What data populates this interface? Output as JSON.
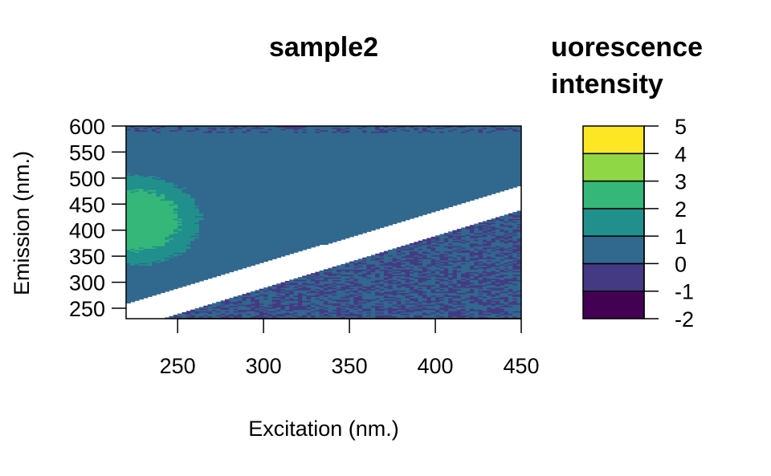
{
  "chart_data": {
    "type": "heatmap",
    "title": "sample2",
    "xlabel": "Excitation (nm.)",
    "ylabel": "Emission (nm.)",
    "xlim": [
      220,
      450
    ],
    "ylim": [
      230,
      600
    ],
    "x_ticks": [
      "250",
      "300",
      "350",
      "400",
      "450"
    ],
    "y_ticks": [
      "250",
      "300",
      "350",
      "400",
      "450",
      "500",
      "550",
      "600"
    ],
    "scatter_bands": {
      "first_order": {
        "center_at_x220": 245,
        "center_at_x450": 470,
        "half_width": 15
      },
      "second_order": {
        "center_at_x220": 220,
        "center_at_x450": 450,
        "half_width": 10
      }
    },
    "legend": {
      "title_lines": [
        "uorescence",
        "intensity"
      ],
      "tick_labels": [
        "5",
        "4",
        "3",
        "2",
        "1",
        "0",
        "-1",
        "-2"
      ],
      "levels": [
        {
          "from": -2,
          "to": -1,
          "color": "#440154"
        },
        {
          "from": -1,
          "to": 0,
          "color": "#443A83"
        },
        {
          "from": 0,
          "to": 1,
          "color": "#31688E"
        },
        {
          "from": 1,
          "to": 2,
          "color": "#21908C"
        },
        {
          "from": 2,
          "to": 3,
          "color": "#35B779"
        },
        {
          "from": 3,
          "to": 4,
          "color": "#8FD744"
        },
        {
          "from": 4,
          "to": 5,
          "color": "#FDE725"
        }
      ]
    },
    "regions": {
      "background_level": 0,
      "fluorescence_peak": {
        "x_range": [
          220,
          265
        ],
        "y_range": [
          290,
          510
        ],
        "peak_level": 2,
        "peak_center": [
          225,
          420
        ]
      },
      "low_region": {
        "description_level": -1,
        "below": "second_order"
      },
      "top_edge_noise_level": -1
    },
    "grid": false,
    "legend_placement": "right"
  }
}
